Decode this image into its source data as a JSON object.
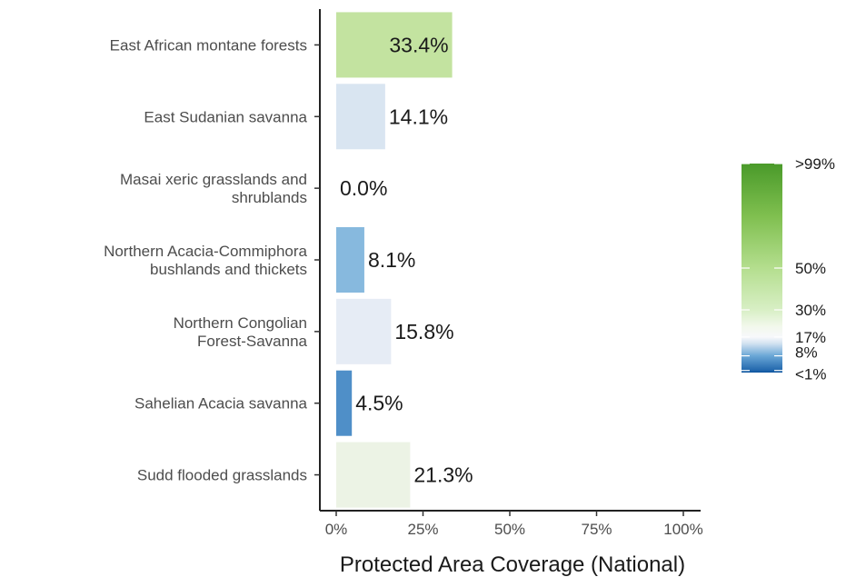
{
  "chart_data": {
    "type": "bar",
    "orientation": "horizontal",
    "categories": [
      [
        "East African montane forests"
      ],
      [
        "East Sudanian savanna"
      ],
      [
        "Masai xeric grasslands and",
        "shrublands"
      ],
      [
        "Northern Acacia-Commiphora",
        "bushlands and thickets"
      ],
      [
        "Northern Congolian",
        "Forest-Savanna"
      ],
      [
        "Sahelian Acacia savanna"
      ],
      [
        "Sudd flooded grasslands"
      ]
    ],
    "values": [
      33.4,
      14.1,
      0.0,
      8.1,
      15.8,
      4.5,
      21.3
    ],
    "value_labels": [
      "33.4%",
      "14.1%",
      "0.0%",
      "8.1%",
      "15.8%",
      "4.5%",
      "21.3%"
    ],
    "bar_colors": [
      "#c3e3a0",
      "#d9e5f1",
      "#ffffff",
      "#87b9de",
      "#e6ecf5",
      "#4f8fc8",
      "#ecf3e5"
    ],
    "xlim": [
      0,
      100
    ],
    "x_ticks": [
      0,
      25,
      50,
      75,
      100
    ],
    "x_tick_labels": [
      "0%",
      "25%",
      "50%",
      "75%",
      "100%"
    ],
    "xlabel": "Protected Area Coverage (National)",
    "ylabel": "",
    "title": "",
    "grid": false,
    "legend": {
      "placement": "right",
      "type": "colorbar",
      "labels": [
        {
          "value": 100,
          "text": ">99%"
        },
        {
          "value": 50,
          "text": "50%"
        },
        {
          "value": 30,
          "text": "30%"
        },
        {
          "value": 17,
          "text": "17%"
        },
        {
          "value": 8,
          "text": "8%"
        },
        {
          "value": 1,
          "text": "<1%"
        }
      ],
      "gradient_stops": [
        {
          "value": 0,
          "color": "#08519c"
        },
        {
          "value": 1,
          "color": "#2166ac"
        },
        {
          "value": 8,
          "color": "#6aa7d6"
        },
        {
          "value": 14,
          "color": "#d4e3f1"
        },
        {
          "value": 17,
          "color": "#f7f8fb"
        },
        {
          "value": 22,
          "color": "#f2f8ec"
        },
        {
          "value": 30,
          "color": "#d8efc5"
        },
        {
          "value": 50,
          "color": "#b4de8e"
        },
        {
          "value": 75,
          "color": "#7fbf4f"
        },
        {
          "value": 100,
          "color": "#4a9a2a"
        }
      ]
    }
  }
}
